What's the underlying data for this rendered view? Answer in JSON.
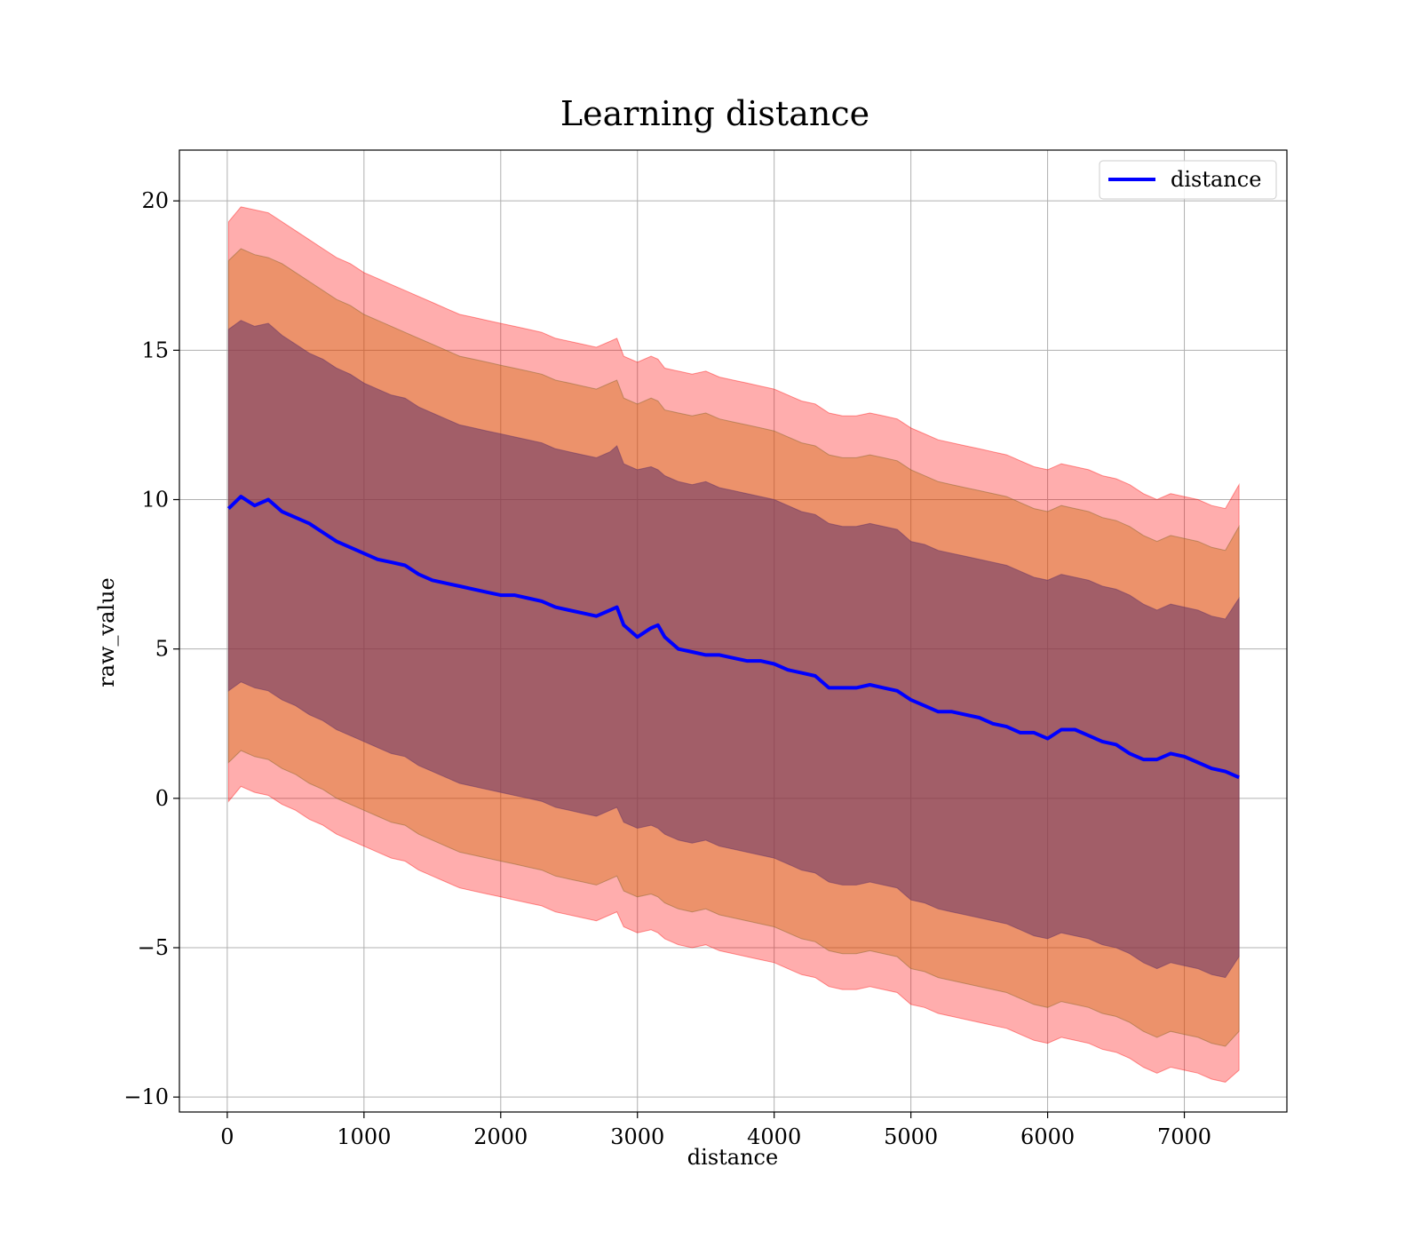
{
  "chart_data": {
    "type": "line",
    "title": "Learning distance",
    "xlabel": "distance",
    "ylabel": "raw_value",
    "xlim": [
      -350,
      7750
    ],
    "ylim": [
      -10.5,
      21.7
    ],
    "xticks": [
      0,
      1000,
      2000,
      3000,
      4000,
      5000,
      6000,
      7000
    ],
    "xtick_labels": [
      "0",
      "1000",
      "2000",
      "3000",
      "4000",
      "5000",
      "6000",
      "7000"
    ],
    "yticks": [
      -10,
      -5,
      0,
      5,
      10,
      15,
      20
    ],
    "ytick_labels": [
      "−10",
      "−5",
      "0",
      "5",
      "10",
      "15",
      "20"
    ],
    "grid": true,
    "legend": {
      "position": "top-right",
      "entries": [
        "distance"
      ]
    },
    "colors": {
      "line": "#0000ff",
      "band_outer": "#ff0000",
      "band_middle": "#cc6600",
      "band_inner": "#663366"
    },
    "x": [
      10,
      100,
      200,
      300,
      400,
      500,
      600,
      700,
      800,
      900,
      1000,
      1100,
      1200,
      1300,
      1400,
      1500,
      1600,
      1700,
      1800,
      1900,
      2000,
      2100,
      2200,
      2300,
      2400,
      2500,
      2600,
      2700,
      2800,
      2850,
      2900,
      3000,
      3100,
      3150,
      3200,
      3300,
      3400,
      3500,
      3600,
      3700,
      3800,
      3900,
      4000,
      4100,
      4200,
      4300,
      4400,
      4500,
      4600,
      4700,
      4800,
      4900,
      5000,
      5100,
      5200,
      5300,
      5400,
      5500,
      5600,
      5700,
      5800,
      5900,
      6000,
      6100,
      6200,
      6300,
      6400,
      6500,
      6600,
      6700,
      6800,
      6900,
      7000,
      7100,
      7200,
      7300,
      7400
    ],
    "series": [
      {
        "name": "distance",
        "values": [
          9.7,
          10.1,
          9.8,
          10.0,
          9.6,
          9.4,
          9.2,
          8.9,
          8.6,
          8.4,
          8.2,
          8.0,
          7.9,
          7.8,
          7.5,
          7.3,
          7.2,
          7.1,
          7.0,
          6.9,
          6.8,
          6.8,
          6.7,
          6.6,
          6.4,
          6.3,
          6.2,
          6.1,
          6.3,
          6.4,
          5.8,
          5.4,
          5.7,
          5.8,
          5.4,
          5.0,
          4.9,
          4.8,
          4.8,
          4.7,
          4.6,
          4.6,
          4.5,
          4.3,
          4.2,
          4.1,
          3.7,
          3.7,
          3.7,
          3.8,
          3.7,
          3.6,
          3.3,
          3.1,
          2.9,
          2.9,
          2.8,
          2.7,
          2.5,
          2.4,
          2.2,
          2.2,
          2.0,
          2.3,
          2.3,
          2.1,
          1.9,
          1.8,
          1.5,
          1.3,
          1.3,
          1.5,
          1.4,
          1.2,
          1.0,
          0.9,
          0.7
        ]
      }
    ],
    "bands": {
      "upper_inner": [
        15.7,
        16.0,
        15.8,
        15.9,
        15.5,
        15.2,
        14.9,
        14.7,
        14.4,
        14.2,
        13.9,
        13.7,
        13.5,
        13.4,
        13.1,
        12.9,
        12.7,
        12.5,
        12.4,
        12.3,
        12.2,
        12.1,
        12.0,
        11.9,
        11.7,
        11.6,
        11.5,
        11.4,
        11.6,
        11.8,
        11.2,
        11.0,
        11.1,
        11.0,
        10.8,
        10.6,
        10.5,
        10.6,
        10.4,
        10.3,
        10.2,
        10.1,
        10.0,
        9.8,
        9.6,
        9.5,
        9.2,
        9.1,
        9.1,
        9.2,
        9.1,
        9.0,
        8.6,
        8.5,
        8.3,
        8.2,
        8.1,
        8.0,
        7.9,
        7.8,
        7.6,
        7.4,
        7.3,
        7.5,
        7.4,
        7.3,
        7.1,
        7.0,
        6.8,
        6.5,
        6.3,
        6.5,
        6.4,
        6.3,
        6.1,
        6.0,
        6.7
      ],
      "upper_middle": [
        18.0,
        18.4,
        18.2,
        18.1,
        17.9,
        17.6,
        17.3,
        17.0,
        16.7,
        16.5,
        16.2,
        16.0,
        15.8,
        15.6,
        15.4,
        15.2,
        15.0,
        14.8,
        14.7,
        14.6,
        14.5,
        14.4,
        14.3,
        14.2,
        14.0,
        13.9,
        13.8,
        13.7,
        13.9,
        14.0,
        13.4,
        13.2,
        13.4,
        13.3,
        13.0,
        12.9,
        12.8,
        12.9,
        12.7,
        12.6,
        12.5,
        12.4,
        12.3,
        12.1,
        11.9,
        11.8,
        11.5,
        11.4,
        11.4,
        11.5,
        11.4,
        11.3,
        11.0,
        10.8,
        10.6,
        10.5,
        10.4,
        10.3,
        10.2,
        10.1,
        9.9,
        9.7,
        9.6,
        9.8,
        9.7,
        9.6,
        9.4,
        9.3,
        9.1,
        8.8,
        8.6,
        8.8,
        8.7,
        8.6,
        8.4,
        8.3,
        9.1
      ],
      "upper_outer": [
        19.3,
        19.8,
        19.7,
        19.6,
        19.3,
        19.0,
        18.7,
        18.4,
        18.1,
        17.9,
        17.6,
        17.4,
        17.2,
        17.0,
        16.8,
        16.6,
        16.4,
        16.2,
        16.1,
        16.0,
        15.9,
        15.8,
        15.7,
        15.6,
        15.4,
        15.3,
        15.2,
        15.1,
        15.3,
        15.4,
        14.8,
        14.6,
        14.8,
        14.7,
        14.4,
        14.3,
        14.2,
        14.3,
        14.1,
        14.0,
        13.9,
        13.8,
        13.7,
        13.5,
        13.3,
        13.2,
        12.9,
        12.8,
        12.8,
        12.9,
        12.8,
        12.7,
        12.4,
        12.2,
        12.0,
        11.9,
        11.8,
        11.7,
        11.6,
        11.5,
        11.3,
        11.1,
        11.0,
        11.2,
        11.1,
        11.0,
        10.8,
        10.7,
        10.5,
        10.2,
        10.0,
        10.2,
        10.1,
        10.0,
        9.8,
        9.7,
        10.5
      ],
      "lower_inner": [
        3.6,
        3.9,
        3.7,
        3.6,
        3.3,
        3.1,
        2.8,
        2.6,
        2.3,
        2.1,
        1.9,
        1.7,
        1.5,
        1.4,
        1.1,
        0.9,
        0.7,
        0.5,
        0.4,
        0.3,
        0.2,
        0.1,
        0.0,
        -0.1,
        -0.3,
        -0.4,
        -0.5,
        -0.6,
        -0.4,
        -0.3,
        -0.8,
        -1.0,
        -0.9,
        -1.0,
        -1.2,
        -1.4,
        -1.5,
        -1.4,
        -1.6,
        -1.7,
        -1.8,
        -1.9,
        -2.0,
        -2.2,
        -2.4,
        -2.5,
        -2.8,
        -2.9,
        -2.9,
        -2.8,
        -2.9,
        -3.0,
        -3.4,
        -3.5,
        -3.7,
        -3.8,
        -3.9,
        -4.0,
        -4.1,
        -4.2,
        -4.4,
        -4.6,
        -4.7,
        -4.5,
        -4.6,
        -4.7,
        -4.9,
        -5.0,
        -5.2,
        -5.5,
        -5.7,
        -5.5,
        -5.6,
        -5.7,
        -5.9,
        -6.0,
        -5.3
      ],
      "lower_middle": [
        1.2,
        1.6,
        1.4,
        1.3,
        1.0,
        0.8,
        0.5,
        0.3,
        0.0,
        -0.2,
        -0.4,
        -0.6,
        -0.8,
        -0.9,
        -1.2,
        -1.4,
        -1.6,
        -1.8,
        -1.9,
        -2.0,
        -2.1,
        -2.2,
        -2.3,
        -2.4,
        -2.6,
        -2.7,
        -2.8,
        -2.9,
        -2.7,
        -2.6,
        -3.1,
        -3.3,
        -3.2,
        -3.3,
        -3.5,
        -3.7,
        -3.8,
        -3.7,
        -3.9,
        -4.0,
        -4.1,
        -4.2,
        -4.3,
        -4.5,
        -4.7,
        -4.8,
        -5.1,
        -5.2,
        -5.2,
        -5.1,
        -5.2,
        -5.3,
        -5.7,
        -5.8,
        -6.0,
        -6.1,
        -6.2,
        -6.3,
        -6.4,
        -6.5,
        -6.7,
        -6.9,
        -7.0,
        -6.8,
        -6.9,
        -7.0,
        -7.2,
        -7.3,
        -7.5,
        -7.8,
        -8.0,
        -7.8,
        -7.9,
        -8.0,
        -8.2,
        -8.3,
        -7.8
      ],
      "lower_outer": [
        -0.1,
        0.4,
        0.2,
        0.1,
        -0.2,
        -0.4,
        -0.7,
        -0.9,
        -1.2,
        -1.4,
        -1.6,
        -1.8,
        -2.0,
        -2.1,
        -2.4,
        -2.6,
        -2.8,
        -3.0,
        -3.1,
        -3.2,
        -3.3,
        -3.4,
        -3.5,
        -3.6,
        -3.8,
        -3.9,
        -4.0,
        -4.1,
        -3.9,
        -3.8,
        -4.3,
        -4.5,
        -4.4,
        -4.5,
        -4.7,
        -4.9,
        -5.0,
        -4.9,
        -5.1,
        -5.2,
        -5.3,
        -5.4,
        -5.5,
        -5.7,
        -5.9,
        -6.0,
        -6.3,
        -6.4,
        -6.4,
        -6.3,
        -6.4,
        -6.5,
        -6.9,
        -7.0,
        -7.2,
        -7.3,
        -7.4,
        -7.5,
        -7.6,
        -7.7,
        -7.9,
        -8.1,
        -8.2,
        -8.0,
        -8.1,
        -8.2,
        -8.4,
        -8.5,
        -8.7,
        -9.0,
        -9.2,
        -9.0,
        -9.1,
        -9.2,
        -9.4,
        -9.5,
        -9.1
      ]
    }
  }
}
